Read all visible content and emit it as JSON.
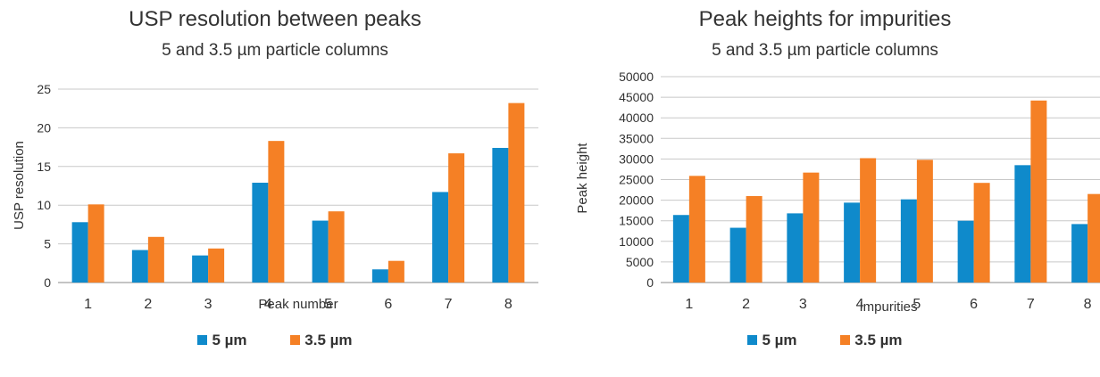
{
  "colors": {
    "series_5um": "#0f8acb",
    "series_35um": "#f58025",
    "grid": "#c8c8c8",
    "axis": "#888888"
  },
  "chart_data": [
    {
      "type": "bar",
      "title": "USP resolution between peaks",
      "subtitle": "5 and 3.5 µm particle columns",
      "xlabel": "Peak number",
      "ylabel": "USP resolution",
      "ylim": [
        0,
        25
      ],
      "yticks": [
        "0",
        "5",
        "10",
        "15",
        "20",
        "25"
      ],
      "grid": true,
      "legend_position": "bottom",
      "categories": [
        "1",
        "2",
        "3",
        "4",
        "5",
        "6",
        "7",
        "8"
      ],
      "series": [
        {
          "name": "5 µm",
          "values": [
            7.8,
            4.2,
            3.5,
            12.9,
            8.0,
            1.7,
            11.7,
            17.4
          ]
        },
        {
          "name": "3.5 µm",
          "values": [
            10.1,
            5.9,
            4.4,
            18.3,
            9.2,
            2.8,
            16.7,
            23.2
          ]
        }
      ]
    },
    {
      "type": "bar",
      "title": "Peak heights for impurities",
      "subtitle": "5 and 3.5 µm particle columns",
      "xlabel": "Impurities",
      "ylabel": "Peak height",
      "ylim": [
        0,
        50000
      ],
      "yticks": [
        "0",
        "5000",
        "10000",
        "15000",
        "20000",
        "25000",
        "30000",
        "35000",
        "40000",
        "45000",
        "50000"
      ],
      "grid": true,
      "legend_position": "bottom",
      "categories": [
        "1",
        "2",
        "3",
        "4",
        "5",
        "6",
        "7",
        "8"
      ],
      "series": [
        {
          "name": "5 µm",
          "values": [
            16400,
            13300,
            16800,
            19400,
            20200,
            15000,
            28500,
            14200
          ]
        },
        {
          "name": "3.5 µm",
          "values": [
            25900,
            21000,
            26700,
            30200,
            29800,
            24200,
            44200,
            21500
          ]
        }
      ]
    }
  ]
}
